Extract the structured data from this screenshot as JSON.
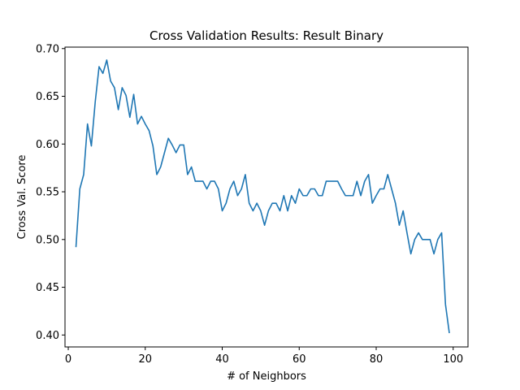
{
  "chart_data": {
    "type": "line",
    "title": "Cross Validation Results: Result Binary",
    "xlabel": "# of Neighbors",
    "ylabel": "Cross Val. Score",
    "xlim": [
      -0.85,
      103.85
    ],
    "ylim": [
      0.3875,
      0.7015
    ],
    "xticks": [
      0,
      20,
      40,
      60,
      80,
      100
    ],
    "xtick_labels": [
      "0",
      "20",
      "40",
      "60",
      "80",
      "100"
    ],
    "yticks": [
      0.4,
      0.45,
      0.5,
      0.55,
      0.6,
      0.65,
      0.7
    ],
    "ytick_labels": [
      "0.40",
      "0.45",
      "0.50",
      "0.55",
      "0.60",
      "0.65",
      "0.70"
    ],
    "grid": false,
    "legend": false,
    "color": "#1f77b4",
    "series": [
      {
        "x": [
          2,
          3,
          4,
          5,
          6,
          7,
          8,
          9,
          10,
          11,
          12,
          13,
          14,
          15,
          16,
          17,
          18,
          19,
          20,
          21,
          22,
          23,
          24,
          25,
          26,
          27,
          28,
          29,
          30,
          31,
          32,
          33,
          34,
          35,
          36,
          37,
          38,
          39,
          40,
          41,
          42,
          43,
          44,
          45,
          46,
          47,
          48,
          49,
          50,
          51,
          52,
          53,
          54,
          55,
          56,
          57,
          58,
          59,
          60,
          61,
          62,
          63,
          64,
          65,
          66,
          67,
          68,
          69,
          70,
          71,
          72,
          73,
          74,
          75,
          76,
          77,
          78,
          79,
          80,
          81,
          82,
          83,
          84,
          85,
          86,
          87,
          88,
          89,
          90,
          91,
          92,
          93,
          94,
          95,
          96,
          97,
          98,
          99
        ],
        "y": [
          0.492,
          0.553,
          0.568,
          0.621,
          0.598,
          0.644,
          0.681,
          0.674,
          0.688,
          0.666,
          0.659,
          0.636,
          0.659,
          0.651,
          0.628,
          0.652,
          0.621,
          0.629,
          0.621,
          0.614,
          0.598,
          0.568,
          0.576,
          0.591,
          0.606,
          0.599,
          0.591,
          0.599,
          0.599,
          0.568,
          0.576,
          0.561,
          0.561,
          0.561,
          0.553,
          0.561,
          0.561,
          0.553,
          0.53,
          0.538,
          0.553,
          0.561,
          0.546,
          0.553,
          0.568,
          0.538,
          0.53,
          0.538,
          0.53,
          0.515,
          0.53,
          0.538,
          0.538,
          0.53,
          0.546,
          0.53,
          0.546,
          0.538,
          0.553,
          0.546,
          0.546,
          0.553,
          0.553,
          0.546,
          0.546,
          0.561,
          0.561,
          0.561,
          0.561,
          0.553,
          0.546,
          0.546,
          0.546,
          0.561,
          0.546,
          0.561,
          0.568,
          0.538,
          0.546,
          0.553,
          0.553,
          0.568,
          0.553,
          0.538,
          0.515,
          0.53,
          0.507,
          0.485,
          0.5,
          0.507,
          0.5,
          0.5,
          0.5,
          0.485,
          0.5,
          0.507,
          0.432,
          0.402
        ]
      }
    ]
  }
}
